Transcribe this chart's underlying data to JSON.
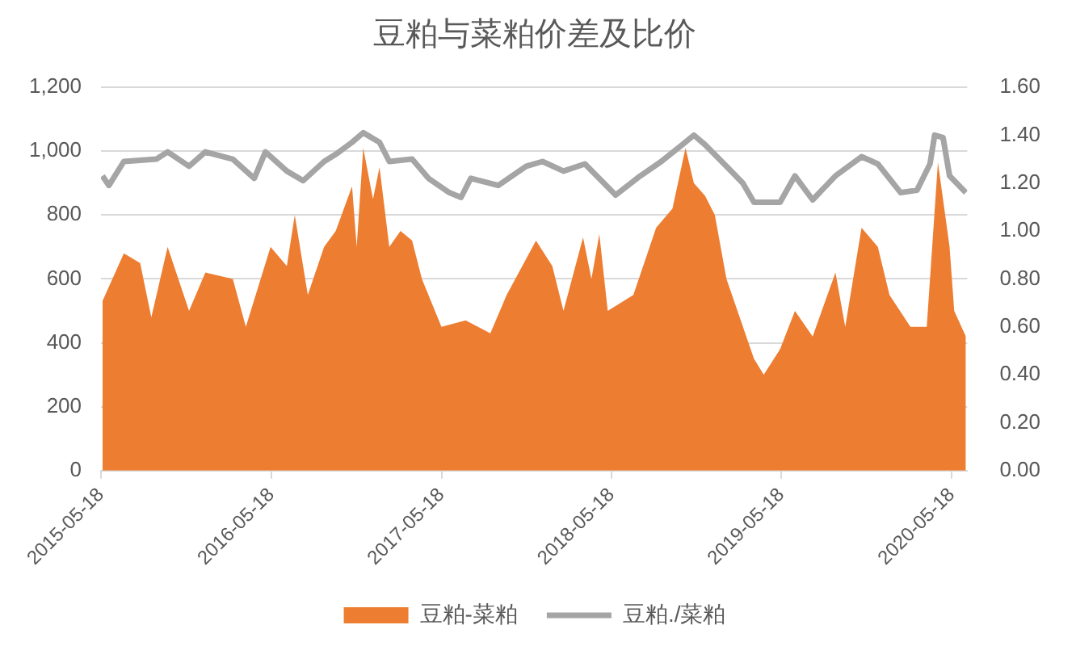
{
  "chart_data": {
    "type": "line",
    "title": "豆粕与菜粕价差及比价",
    "xlim": [
      "2015-05-18",
      "2020-06-20"
    ],
    "xticks": [
      "2015-05-18",
      "2016-05-18",
      "2017-05-18",
      "2018-05-18",
      "2019-05-18",
      "2020-05-18"
    ],
    "ylim": [
      0,
      1200
    ],
    "yticks": [
      0,
      200,
      400,
      600,
      800,
      {
        "value": 1000,
        "label": "1,000"
      },
      {
        "value": 1200,
        "label": "1,200"
      }
    ],
    "y2lim": [
      0,
      1.6
    ],
    "y2ticks": [
      {
        "value": 0,
        "label": "0.00"
      },
      {
        "value": 0.2,
        "label": "0.20"
      },
      {
        "value": 0.4,
        "label": "0.40"
      },
      {
        "value": 0.6,
        "label": "0.60"
      },
      {
        "value": 0.8,
        "label": "0.80"
      },
      {
        "value": 1,
        "label": "1.00"
      },
      {
        "value": 1.2,
        "label": "1.20"
      },
      {
        "value": 1.4,
        "label": "1.40"
      },
      {
        "value": 1.6,
        "label": "1.60"
      }
    ],
    "grid": "y",
    "legend": "bottom",
    "marker": "none",
    "line_style": "solid",
    "series": [
      {
        "name": "豆粕-菜粕",
        "type": "area",
        "color": "#ed7d31",
        "x": [
          "2015-05-21",
          "2015-07-06",
          "2015-08-10",
          "2015-09-03",
          "2015-10-08",
          "2015-11-23",
          "2015-12-28",
          "2016-02-25",
          "2016-03-24",
          "2016-05-16",
          "2016-06-20",
          "2016-07-07",
          "2016-08-04",
          "2016-09-08",
          "2016-10-03",
          "2016-11-07",
          "2016-11-17",
          "2016-12-01",
          "2016-12-22",
          "2017-01-05",
          "2017-01-26",
          "2017-02-19",
          "2017-03-16",
          "2017-04-06",
          "2017-05-18",
          "2017-07-09",
          "2017-08-31",
          "2017-10-05",
          "2017-12-07",
          "2018-01-11",
          "2018-02-04",
          "2018-03-18",
          "2018-04-05",
          "2018-04-22",
          "2018-05-10",
          "2018-07-04",
          "2018-08-22",
          "2018-09-26",
          "2018-10-24",
          "2018-11-11",
          "2018-12-05",
          "2018-12-26",
          "2019-01-20",
          "2019-03-20",
          "2019-04-10",
          "2019-05-15",
          "2019-06-16",
          "2019-07-24",
          "2019-09-11",
          "2019-10-02",
          "2019-11-06",
          "2019-12-11",
          "2020-01-05",
          "2020-02-19",
          "2020-03-25",
          "2020-04-18",
          "2020-05-13",
          "2020-05-23",
          "2020-06-17"
        ],
        "values": [
          530,
          680,
          650,
          480,
          700,
          500,
          620,
          600,
          450,
          700,
          640,
          800,
          550,
          700,
          750,
          890,
          700,
          1010,
          850,
          950,
          700,
          750,
          720,
          600,
          450,
          470,
          430,
          550,
          720,
          640,
          500,
          730,
          600,
          740,
          500,
          550,
          760,
          820,
          1010,
          900,
          860,
          800,
          600,
          350,
          300,
          380,
          500,
          420,
          620,
          450,
          760,
          700,
          550,
          450,
          450,
          965,
          700,
          500,
          420
        ]
      },
      {
        "name": "豆粕./菜粕",
        "type": "line",
        "axis": "y2",
        "color": "#a5a5a5",
        "x": [
          "2015-05-21",
          "2015-06-04",
          "2015-07-06",
          "2015-09-14",
          "2015-10-08",
          "2015-11-23",
          "2015-12-28",
          "2016-02-25",
          "2016-04-11",
          "2016-05-05",
          "2016-06-20",
          "2016-07-25",
          "2016-09-08",
          "2016-10-03",
          "2016-11-07",
          "2016-12-01",
          "2017-01-05",
          "2017-01-26",
          "2017-03-16",
          "2017-04-20",
          "2017-06-04",
          "2017-06-29",
          "2017-07-20",
          "2017-09-17",
          "2017-11-16",
          "2017-12-21",
          "2018-02-04",
          "2018-03-22",
          "2018-05-27",
          "2018-07-19",
          "2018-09-02",
          "2018-10-17",
          "2018-11-11",
          "2018-12-05",
          "2019-01-20",
          "2019-02-24",
          "2019-03-20",
          "2019-05-15",
          "2019-06-16",
          "2019-07-24",
          "2019-09-11",
          "2019-11-06",
          "2019-12-11",
          "2020-01-29",
          "2020-03-04",
          "2020-04-01",
          "2020-04-11",
          "2020-04-29",
          "2020-05-13",
          "2020-06-17"
        ],
        "values": [
          1.23,
          1.19,
          1.29,
          1.3,
          1.33,
          1.27,
          1.33,
          1.3,
          1.22,
          1.33,
          1.25,
          1.21,
          1.29,
          1.32,
          1.37,
          1.41,
          1.37,
          1.29,
          1.3,
          1.22,
          1.16,
          1.14,
          1.22,
          1.19,
          1.27,
          1.29,
          1.25,
          1.28,
          1.15,
          1.23,
          1.29,
          1.36,
          1.4,
          1.36,
          1.27,
          1.2,
          1.12,
          1.12,
          1.23,
          1.13,
          1.23,
          1.31,
          1.28,
          1.16,
          1.17,
          1.28,
          1.4,
          1.39,
          1.23,
          1.16
        ]
      }
    ]
  }
}
